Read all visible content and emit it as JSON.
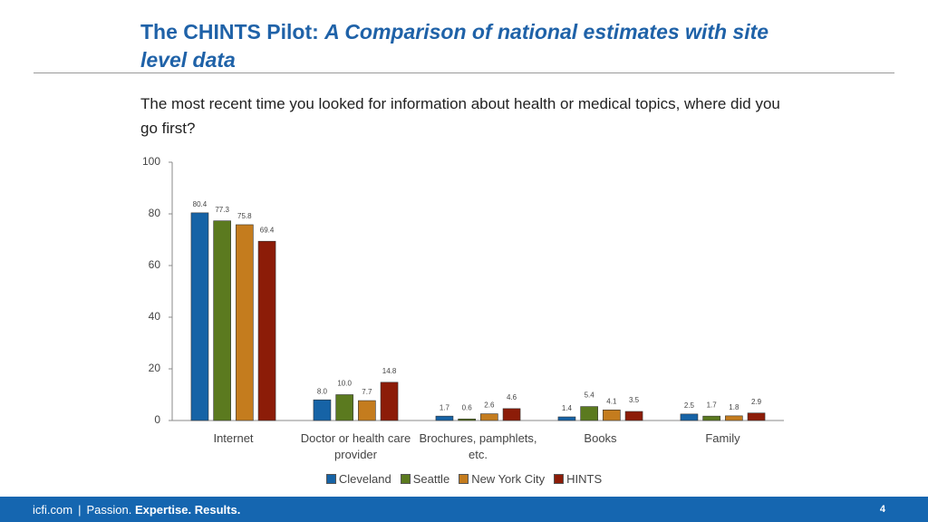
{
  "header": {
    "title_lead": "The CHINTS Pilot:",
    "title_emph": "A Comparison of national estimates with  site level data",
    "question": "The most recent time you looked for information about health or medical topics, where did you go first?"
  },
  "chart_data": {
    "type": "bar",
    "categories": [
      "Internet",
      "Doctor or health care provider",
      "Brochures, pamphlets, etc.",
      "Books",
      "Family"
    ],
    "series": [
      {
        "name": "Cleveland",
        "color": "#1663a6",
        "values": [
          80.4,
          8.0,
          1.7,
          1.4,
          2.5
        ],
        "value_labels": [
          "80.4",
          "8.0",
          "1.7",
          "1.4",
          "2.5"
        ]
      },
      {
        "name": "Seattle",
        "color": "#5b7a1f",
        "values": [
          77.3,
          10.0,
          0.6,
          5.4,
          1.7
        ],
        "value_labels": [
          "77.3",
          "10.0",
          "0.6",
          "5.4",
          "1.7"
        ]
      },
      {
        "name": "New York City",
        "color": "#c47c1e",
        "values": [
          75.8,
          7.7,
          2.6,
          4.1,
          1.8
        ],
        "value_labels": [
          "75.8",
          "7.7",
          "2.6",
          "4.1",
          "1.8"
        ]
      },
      {
        "name": "HINTS",
        "color": "#8c1c08",
        "values": [
          69.4,
          14.8,
          4.6,
          3.5,
          2.9
        ],
        "value_labels": [
          "69.4",
          "14.8",
          "4.6",
          "3.5",
          "2.9"
        ]
      }
    ],
    "ylim": [
      0,
      100
    ],
    "yticks": [
      0,
      20,
      40,
      60,
      80,
      100
    ],
    "grid": false,
    "legend": "bottom"
  },
  "footer": {
    "site": "icfi.com",
    "w1": "Passion.",
    "w2": "Expertise.",
    "w3": "Results.",
    "page": 4
  }
}
